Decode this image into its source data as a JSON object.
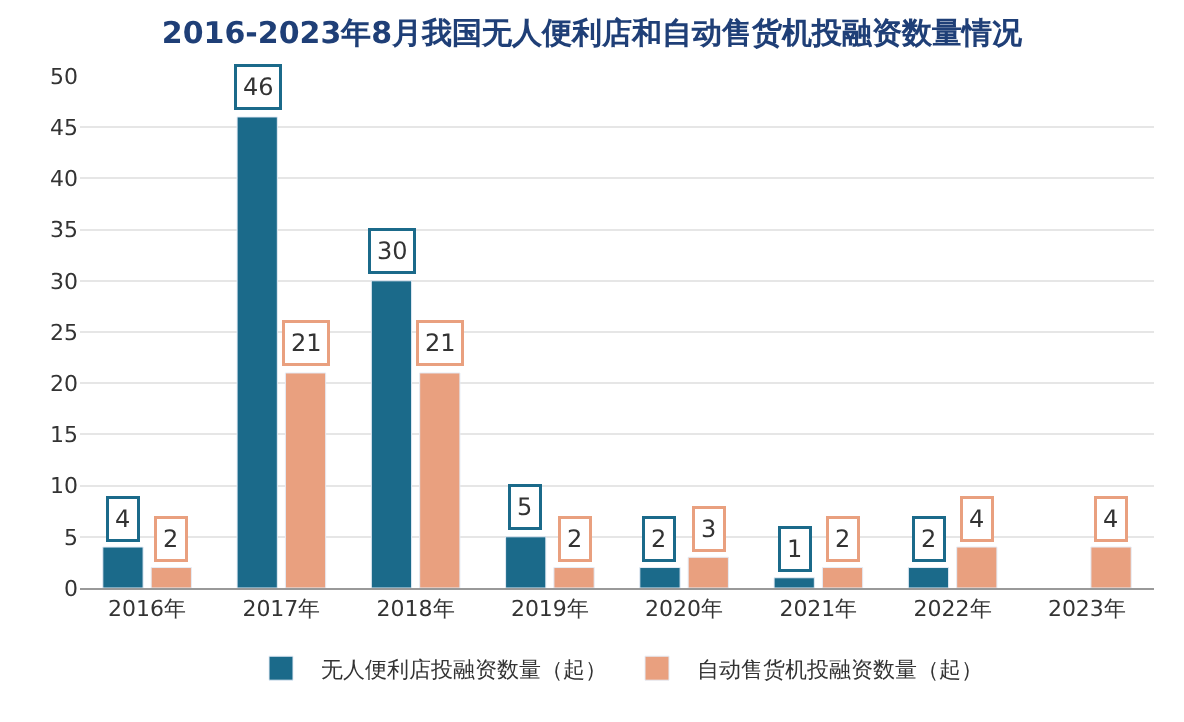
{
  "chart_data": {
    "type": "bar",
    "title": "2016-2023年8月我国无人便利店和自动售货机投融资数量情况",
    "categories": [
      "2016年",
      "2017年",
      "2018年",
      "2019年",
      "2020年",
      "2021年",
      "2022年",
      "2023年"
    ],
    "series": [
      {
        "name": "无人便利店投融资数量（起）",
        "color": "#1b6a8a",
        "values": [
          4,
          46,
          30,
          5,
          2,
          1,
          2,
          null
        ]
      },
      {
        "name": "自动售货机投融资数量（起）",
        "color": "#e9a07f",
        "values": [
          2,
          21,
          21,
          2,
          3,
          2,
          4,
          4
        ]
      }
    ],
    "ylim": [
      0,
      50
    ],
    "yticks": [
      0,
      5,
      10,
      15,
      20,
      25,
      30,
      35,
      40,
      45,
      50
    ],
    "grid": "y",
    "legend": "bottom",
    "data_labels": true
  }
}
